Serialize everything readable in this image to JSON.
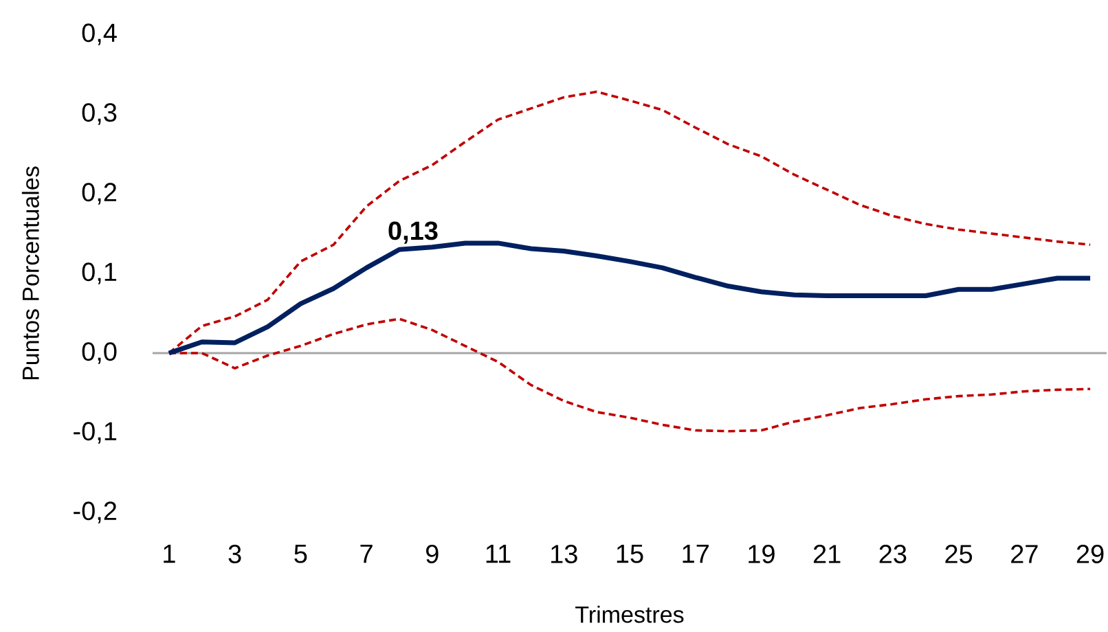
{
  "chart_data": {
    "type": "line",
    "xlabel": "Trimestres",
    "ylabel": "Puntos Porcentuales",
    "x": [
      1,
      2,
      3,
      4,
      5,
      6,
      7,
      8,
      9,
      10,
      11,
      12,
      13,
      14,
      15,
      16,
      17,
      18,
      19,
      20,
      21,
      22,
      23,
      24,
      25,
      26,
      27,
      28,
      29
    ],
    "xlim": [
      0.5,
      29.5
    ],
    "xticks": [
      1,
      3,
      5,
      7,
      9,
      11,
      13,
      15,
      17,
      19,
      21,
      23,
      25,
      27,
      29
    ],
    "ylim": [
      -0.2,
      0.4
    ],
    "yticks": [
      {
        "value": -0.2,
        "label": "-0,2"
      },
      {
        "value": -0.1,
        "label": "-0,1"
      },
      {
        "value": 0,
        "label": "0,0"
      },
      {
        "value": 0.1,
        "label": "0,1"
      },
      {
        "value": 0.2,
        "label": "0,2"
      },
      {
        "value": 0.3,
        "label": "0,3"
      },
      {
        "value": 0.4,
        "label": "0,4"
      }
    ],
    "marker": "none",
    "ref_lines": [
      {
        "axis": "y",
        "value": 0,
        "color": "#a6a6a6"
      }
    ],
    "series": [
      {
        "color": "#002060",
        "line_style": "solid",
        "values": [
          0,
          0.014,
          0.013,
          0.033,
          0.062,
          0.081,
          0.107,
          0.13,
          0.133,
          0.138,
          0.138,
          0.131,
          0.128,
          0.122,
          0.115,
          0.107,
          0.095,
          0.084,
          0.077,
          0.073,
          0.072,
          0.072,
          0.072,
          0.072,
          0.08,
          0.08,
          0.087,
          0.094,
          0.094
        ],
        "value_labels": [
          null,
          null,
          null,
          null,
          null,
          null,
          null,
          "0,13",
          null,
          null,
          null,
          null,
          null,
          null,
          null,
          null,
          null,
          null,
          null,
          null,
          null,
          null,
          null,
          null,
          null,
          null,
          null,
          null,
          null
        ]
      },
      {
        "color": "#c00000",
        "line_style": "dashed",
        "values": [
          0,
          0.034,
          0.046,
          0.067,
          0.115,
          0.136,
          0.184,
          0.216,
          0.236,
          0.265,
          0.293,
          0.307,
          0.321,
          0.328,
          0.317,
          0.305,
          0.283,
          0.262,
          0.247,
          0.224,
          0.205,
          0.186,
          0.172,
          0.162,
          0.155,
          0.15,
          0.145,
          0.14,
          0.136
        ]
      },
      {
        "color": "#c00000",
        "line_style": "dashed",
        "values": [
          0,
          0,
          -0.019,
          -0.003,
          0.009,
          0.024,
          0.036,
          0.043,
          0.029,
          0.009,
          -0.011,
          -0.04,
          -0.06,
          -0.074,
          -0.081,
          -0.09,
          -0.097,
          -0.098,
          -0.097,
          -0.086,
          -0.078,
          -0.069,
          -0.064,
          -0.058,
          -0.054,
          -0.052,
          -0.048,
          -0.046,
          -0.045
        ]
      }
    ]
  }
}
